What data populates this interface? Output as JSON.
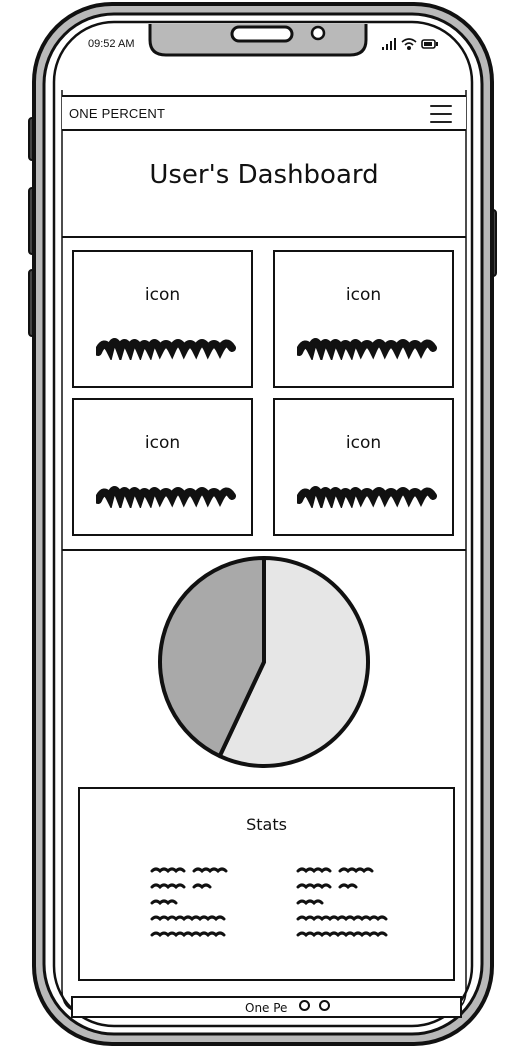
{
  "status_bar": {
    "time": "09:52 AM",
    "icons": [
      "signal-icon",
      "wifi-icon",
      "battery-icon"
    ]
  },
  "navbar": {
    "brand": "ONE PERCENT",
    "menu_icon": "hamburger-menu-icon"
  },
  "page": {
    "title": "User's Dashboard"
  },
  "cards": [
    {
      "label": "icon"
    },
    {
      "label": "icon"
    },
    {
      "label": "icon"
    },
    {
      "label": "icon"
    }
  ],
  "chart_data": {
    "type": "pie",
    "values": [
      57,
      43
    ],
    "colors": [
      "#e6e6e6",
      "#a9a9a9"
    ]
  },
  "stats": {
    "title": "Stats"
  },
  "footer": {
    "text": "One Pe"
  }
}
